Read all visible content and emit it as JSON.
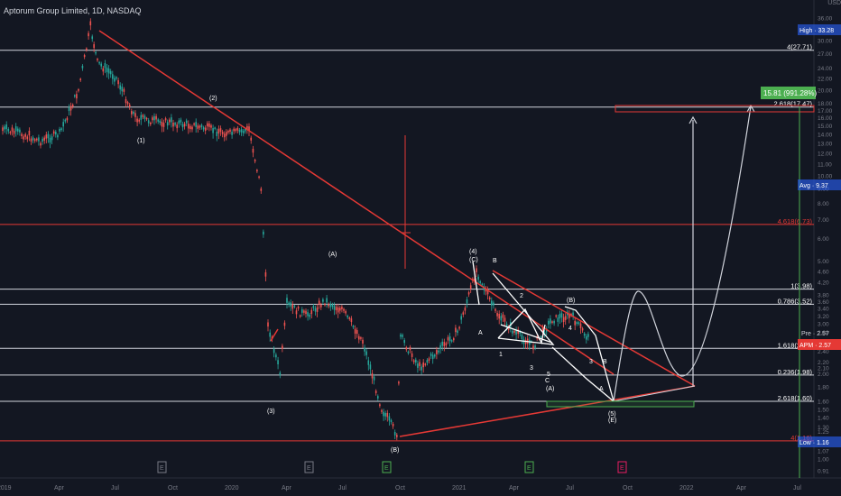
{
  "header": {
    "title": "Aptorum Group Limited, 1D, NASDAQ",
    "currency_top": "USD"
  },
  "y_ticks": [
    "36.00",
    "33.00",
    "30.00",
    "27.00",
    "24.00",
    "22.00",
    "20.00",
    "18.00",
    "17.00",
    "16.00",
    "15.00",
    "14.00",
    "13.00",
    "12.00",
    "11.00",
    "10.00",
    "9.00",
    "8.00",
    "7.00",
    "6.00",
    "5.00",
    "4.60",
    "4.20",
    "3.80",
    "3.60",
    "3.40",
    "3.20",
    "3.00",
    "2.80",
    "2.60",
    "2.40",
    "2.20",
    "2.10",
    "2.00",
    "1.80",
    "1.60",
    "1.50",
    "1.40",
    "1.30",
    "1.25",
    "1.15",
    "1.07",
    "1.00",
    "0.91"
  ],
  "x_ticks": [
    "2019",
    "Apr",
    "Jul",
    "Oct",
    "2020",
    "Apr",
    "Jul",
    "Oct",
    "2021",
    "Apr",
    "Jul",
    "Oct",
    "2022",
    "Apr",
    "Jul"
  ],
  "price_badges": {
    "high": "High · 33.28",
    "gain": "15.81 (991.28%)",
    "avg": "Avg · 9.37",
    "pre": "Pre · 2.57",
    "apm": "APM · 2.57",
    "low": "Low · 1.16"
  },
  "fib_levels": [
    {
      "label": "4(27.71)",
      "price": 27.71,
      "color": "#d1d4dc"
    },
    {
      "label": "2.618(17.47)",
      "price": 17.47,
      "color": "#d1d4dc"
    },
    {
      "label": "4.618(6.73)",
      "price": 6.73,
      "color": "#e53935"
    },
    {
      "label": "1(3.98)",
      "price": 3.98,
      "color": "#d1d4dc"
    },
    {
      "label": "0.786(3.52)",
      "price": 3.52,
      "color": "#d1d4dc"
    },
    {
      "label": "1.618(2.46)",
      "price": 2.46,
      "color": "#d1d4dc"
    },
    {
      "label": "0.236(1.98)",
      "price": 1.98,
      "color": "#d1d4dc"
    },
    {
      "label": "2.618(1.60)",
      "price": 1.6,
      "color": "#d1d4dc"
    },
    {
      "label": "4(1.16)",
      "price": 1.16,
      "color": "#e53935"
    }
  ],
  "wave_labels": [
    "(1)",
    "(2)",
    "(3)",
    "(A)",
    "(4)",
    "(C)",
    "(B)",
    "B",
    "2",
    "A",
    "1",
    "3",
    "5",
    "C",
    "(A)",
    "(B)",
    "(5)",
    "(E)",
    "4",
    "A",
    "B",
    "3"
  ],
  "event_markers": [
    "E",
    "E",
    "E",
    "E",
    "E"
  ],
  "chart_data": {
    "type": "candlestick",
    "title": "Aptorum Group Limited, 1D, NASDAQ",
    "ylabel": "USD",
    "y_scale": "log",
    "ylim": [
      0.91,
      36.0
    ],
    "x_range": [
      "2019-01",
      "2022-08"
    ],
    "series": [
      {
        "values": [
          {
            "x": "2019-01",
            "y": 14.5
          },
          {
            "x": "2019-02",
            "y": 14.0
          },
          {
            "x": "2019-03",
            "y": 13.2
          },
          {
            "x": "2019-04",
            "y": 14.0
          },
          {
            "x": "2019-05",
            "y": 20.0
          },
          {
            "x": "2019-05-20",
            "y": 33.28
          },
          {
            "x": "2019-06",
            "y": 25.0
          },
          {
            "x": "2019-07",
            "y": 22.0
          },
          {
            "x": "2019-08",
            "y": 16.0
          },
          {
            "x": "2019-09",
            "y": 15.5
          },
          {
            "x": "2019-10",
            "y": 15.3
          },
          {
            "x": "2019-11",
            "y": 15.0
          },
          {
            "x": "2019-12",
            "y": 14.5
          },
          {
            "x": "2020-01",
            "y": 14.0
          },
          {
            "x": "2020-02",
            "y": 14.5
          },
          {
            "x": "2020-02-20",
            "y": 9.0
          },
          {
            "x": "2020-03",
            "y": 3.0
          },
          {
            "x": "2020-03-20",
            "y": 2.0
          },
          {
            "x": "2020-04",
            "y": 3.5
          },
          {
            "x": "2020-05",
            "y": 3.2
          },
          {
            "x": "2020-06",
            "y": 3.6
          },
          {
            "x": "2020-07",
            "y": 3.3
          },
          {
            "x": "2020-08",
            "y": 2.6
          },
          {
            "x": "2020-09",
            "y": 1.5
          },
          {
            "x": "2020-09-25",
            "y": 1.22
          },
          {
            "x": "2020-10",
            "y": 2.7
          },
          {
            "x": "2020-11",
            "y": 2.1
          },
          {
            "x": "2020-12",
            "y": 2.4
          },
          {
            "x": "2021-01",
            "y": 2.8
          },
          {
            "x": "2021-02",
            "y": 4.6
          },
          {
            "x": "2021-03",
            "y": 3.3
          },
          {
            "x": "2021-04",
            "y": 2.8
          },
          {
            "x": "2021-05",
            "y": 2.5
          },
          {
            "x": "2021-06",
            "y": 3.1
          },
          {
            "x": "2021-07",
            "y": 3.2
          },
          {
            "x": "2021-08",
            "y": 2.6
          }
        ]
      }
    ]
  }
}
